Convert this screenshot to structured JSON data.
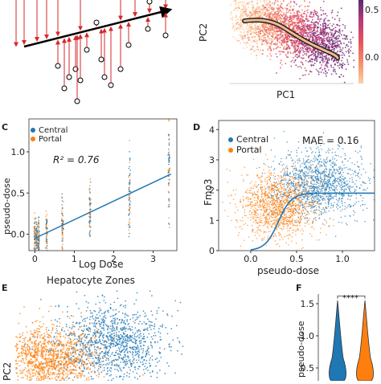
{
  "panels": {
    "a": {
      "label": ""
    },
    "b": {
      "label": "",
      "xlabel": "PC1",
      "ylabel": "PC2",
      "colorbar_ticks": [
        "0.5",
        "0.0"
      ]
    },
    "c": {
      "label": "C",
      "xlabel": "Log Dose",
      "ylabel": "pseudo-dose",
      "annotation": "R² = 0.76"
    },
    "d": {
      "label": "D",
      "xlabel": "pseudo-dose",
      "ylabel": "Fmo3",
      "annotation": "MAE = 0.16"
    },
    "e": {
      "label": "E",
      "title": "Hepatocyte Zones",
      "ylabel": "PC2"
    },
    "f": {
      "label": "F",
      "ylabel": "pseudo-dose",
      "significance": "****"
    }
  },
  "legend": {
    "central": "Central",
    "portal": "Portal"
  },
  "colors": {
    "central": "#1f77b4",
    "portal": "#ff7f0e",
    "arrow": "#d62728"
  },
  "chart_data": [
    {
      "panel": "C",
      "type": "scatter",
      "xlabel": "Log Dose",
      "ylabel": "pseudo-dose",
      "x_ticks": [
        0,
        1,
        2,
        3
      ],
      "y_ticks": [
        0.0,
        0.5,
        1.0
      ],
      "xlim": [
        -0.15,
        3.6
      ],
      "ylim": [
        -0.2,
        1.4
      ],
      "regression": {
        "x": [
          0,
          3.45
        ],
        "y": [
          -0.05,
          0.73
        ],
        "r2": 0.76
      },
      "dose_groups": [
        0,
        0.05,
        0.1,
        0.3,
        0.7,
        1.4,
        2.4,
        3.4
      ],
      "series": [
        {
          "name": "Central"
        },
        {
          "name": "Portal"
        }
      ]
    },
    {
      "panel": "D",
      "type": "scatter",
      "xlabel": "pseudo-dose",
      "ylabel": "Fmo3",
      "x_ticks": [
        0.0,
        0.5,
        1.0
      ],
      "y_ticks": [
        0,
        1,
        2,
        3,
        4
      ],
      "xlim": [
        -0.35,
        1.35
      ],
      "ylim": [
        0,
        4.3
      ],
      "fit_curve": {
        "type": "hill",
        "plateau": 1.9,
        "midpoint": 0.3
      },
      "mae": 0.16,
      "series": [
        {
          "name": "Central"
        },
        {
          "name": "Portal"
        }
      ]
    },
    {
      "panel": "F",
      "type": "violin",
      "ylabel": "pseudo-dose",
      "y_ticks": [
        0.5,
        1.0,
        1.5
      ],
      "series": [
        {
          "name": "Central"
        },
        {
          "name": "Portal"
        }
      ],
      "significance": "****"
    }
  ]
}
